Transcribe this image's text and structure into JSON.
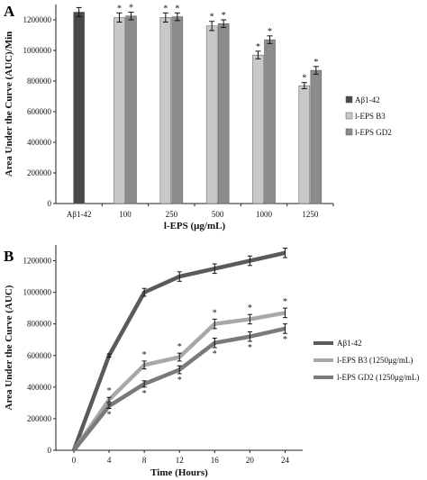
{
  "chart_data": [
    {
      "panel": "A",
      "type": "bar",
      "xlabel": "l-EPS (μg/mL)",
      "ylabel": "Area Under the Curve (AUC)/Min",
      "ylim": [
        0,
        1300000
      ],
      "yticks": [
        "0",
        "200000",
        "400000",
        "600000",
        "800000",
        "1000000",
        "1200000"
      ],
      "categories": [
        "Aβ1-42",
        "100",
        "250",
        "500",
        "1000",
        "1250"
      ],
      "legend_position": "right",
      "series": [
        {
          "name": "Aβ1-42",
          "color": "#4a4a4a",
          "values": [
            1250000,
            null,
            null,
            null,
            null,
            null
          ],
          "errors": [
            30000,
            null,
            null,
            null,
            null,
            null
          ],
          "significant": [
            false,
            false,
            false,
            false,
            false,
            false
          ]
        },
        {
          "name": "l-EPS B3",
          "color": "#c8c8c8",
          "values": [
            null,
            1215000,
            1215000,
            1160000,
            970000,
            770000
          ],
          "errors": [
            null,
            30000,
            30000,
            30000,
            25000,
            20000
          ],
          "significant": [
            false,
            true,
            true,
            true,
            true,
            true
          ]
        },
        {
          "name": "l-EPS GD2",
          "color": "#8c8c8c",
          "values": [
            null,
            1225000,
            1220000,
            1175000,
            1070000,
            870000
          ],
          "errors": [
            null,
            25000,
            25000,
            25000,
            25000,
            25000
          ],
          "significant": [
            false,
            true,
            true,
            true,
            true,
            true
          ]
        }
      ]
    },
    {
      "panel": "B",
      "type": "line",
      "xlabel": "Time (Hours)",
      "ylabel": "Area Under the Curve (AUC)",
      "ylim": [
        0,
        1300000
      ],
      "yticks": [
        "0",
        "200000",
        "400000",
        "600000",
        "800000",
        "1000000",
        "1200000"
      ],
      "x": [
        0,
        4,
        8,
        12,
        16,
        20,
        24
      ],
      "xticks": [
        "0",
        "4",
        "8",
        "12",
        "16",
        "20",
        "24"
      ],
      "legend_position": "right",
      "series": [
        {
          "name": "Aβ1-42",
          "color": "#5a5a5a",
          "values": [
            0,
            600000,
            1000000,
            1100000,
            1150000,
            1200000,
            1250000
          ],
          "errors": [
            0,
            10000,
            25000,
            30000,
            30000,
            30000,
            30000
          ],
          "significant": [
            false,
            false,
            false,
            false,
            false,
            false,
            false
          ]
        },
        {
          "name": "l-EPS B3 (1250μg/mL)",
          "color": "#a8a8a8",
          "values": [
            0,
            320000,
            540000,
            590000,
            800000,
            830000,
            870000
          ],
          "errors": [
            0,
            15000,
            25000,
            25000,
            30000,
            30000,
            30000
          ],
          "significant": [
            false,
            true,
            true,
            true,
            true,
            true,
            true
          ]
        },
        {
          "name": "l-EPS GD2 (1250μg/mL)",
          "color": "#7a7a7a",
          "values": [
            0,
            280000,
            420000,
            510000,
            680000,
            720000,
            770000
          ],
          "errors": [
            0,
            15000,
            20000,
            25000,
            30000,
            30000,
            30000
          ],
          "significant": [
            false,
            true,
            true,
            true,
            true,
            true,
            true
          ]
        }
      ]
    }
  ],
  "significance_marker": "*"
}
